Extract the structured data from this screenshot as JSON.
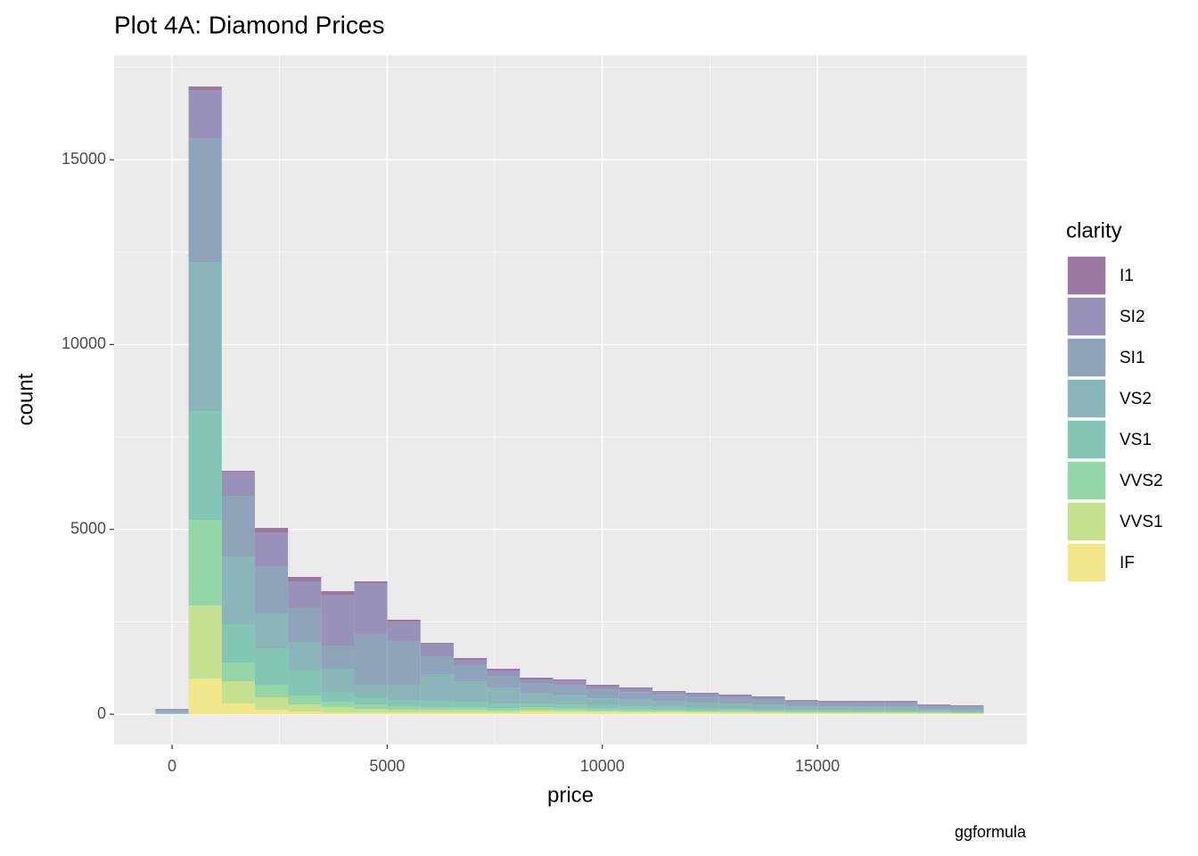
{
  "chart_data": {
    "type": "histogram",
    "title": "Plot 4A: Diamond Prices",
    "x_label": "price",
    "y_label": "count",
    "caption": "ggformula",
    "legend_title": "clarity",
    "legend_position": "right",
    "grid": true,
    "bins": [
      -385,
      385,
      1155,
      1925,
      2695,
      3465,
      4235,
      5005,
      5775,
      6545,
      7315,
      8085,
      8855,
      9625,
      10395,
      11165,
      11935,
      12705,
      13475,
      14245,
      15015,
      15785,
      16555,
      17325,
      18095,
      18865
    ],
    "series": [
      {
        "name": "I1",
        "color": "#9b789f",
        "values": [
          8,
          97,
          24,
          121,
          120,
          97,
          48,
          49,
          24,
          49,
          48,
          48,
          41,
          36,
          34,
          27,
          24,
          23,
          22,
          18,
          17,
          17,
          17,
          13,
          12
        ]
      },
      {
        "name": "SI2",
        "color": "#9992b8",
        "values": [
          35,
          1302,
          652,
          916,
          724,
          1375,
          1375,
          530,
          338,
          144,
          145,
          97,
          120,
          100,
          90,
          75,
          75,
          70,
          60,
          50,
          45,
          45,
          45,
          34,
          31
        ]
      },
      {
        "name": "SI1",
        "color": "#8fa3bb",
        "values": [
          45,
          3354,
          1640,
          1278,
          916,
          627,
          1375,
          1182,
          483,
          435,
          313,
          265,
          270,
          230,
          210,
          180,
          165,
          150,
          135,
          105,
          100,
          100,
          102,
          72,
          65
        ]
      },
      {
        "name": "VS2",
        "color": "#8ab5b9",
        "values": [
          35,
          4028,
          1833,
          941,
          772,
          627,
          338,
          410,
          723,
          554,
          435,
          290,
          250,
          200,
          180,
          160,
          145,
          130,
          120,
          95,
          88,
          90,
          90,
          65,
          60
        ]
      },
      {
        "name": "VS1",
        "color": "#83c6b6",
        "values": [
          15,
          2942,
          1037,
          989,
          675,
          265,
          193,
          169,
          169,
          145,
          120,
          96,
          90,
          80,
          75,
          65,
          60,
          55,
          50,
          40,
          38,
          38,
          37,
          28,
          25
        ]
      },
      {
        "name": "VVS2",
        "color": "#93d7a9",
        "values": [
          5,
          2315,
          507,
          338,
          242,
          145,
          120,
          96,
          72,
          72,
          73,
          72,
          65,
          55,
          50,
          45,
          40,
          38,
          35,
          28,
          26,
          26,
          25,
          19,
          17
        ]
      },
      {
        "name": "VVS1",
        "color": "#c5e190",
        "values": [
          2,
          1978,
          602,
          338,
          193,
          145,
          97,
          73,
          73,
          73,
          48,
          49,
          45,
          40,
          35,
          30,
          30,
          27,
          25,
          20,
          20,
          19,
          19,
          14,
          13
        ]
      },
      {
        "name": "IF",
        "color": "#f2e68a",
        "values": [
          0,
          965,
          290,
          120,
          72,
          48,
          48,
          48,
          48,
          48,
          48,
          72,
          60,
          55,
          50,
          45,
          40,
          38,
          35,
          30,
          28,
          27,
          27,
          20,
          18
        ]
      }
    ],
    "xlim": [
      -1347,
      19867
    ],
    "xticks": [
      0,
      5000,
      10000,
      15000
    ],
    "ylim": [
      -820,
      17825
    ],
    "yticks": [
      0,
      5000,
      10000,
      15000
    ]
  }
}
